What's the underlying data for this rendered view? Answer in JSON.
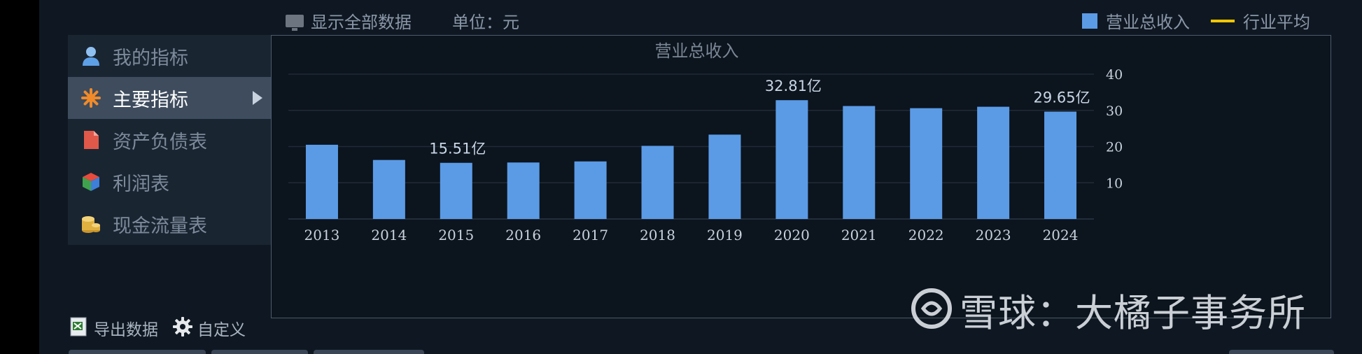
{
  "topbar": {
    "show_all": "显示全部数据",
    "unit": "单位：元",
    "legend": [
      {
        "label": "营业总收入",
        "color": "#5b9be6"
      },
      {
        "label": "行业平均",
        "color": "#f2c500"
      }
    ]
  },
  "sidebar": {
    "items": [
      {
        "label": "我的指标",
        "icon": "user-icon"
      },
      {
        "label": "主要指标",
        "icon": "star-burst-icon",
        "active": true
      },
      {
        "label": "资产负债表",
        "icon": "document-icon"
      },
      {
        "label": "利润表",
        "icon": "cube-icon"
      },
      {
        "label": "现金流量表",
        "icon": "coins-icon"
      }
    ]
  },
  "tools": {
    "export": "导出数据",
    "custom": "自定义"
  },
  "watermark": {
    "text": "雪球：大橘子事务所"
  },
  "colors": {
    "bar": "#5b9be6",
    "grid": "#1f2b38",
    "axis_text": "#c8d3df",
    "title": "#7a8796"
  },
  "chart_data": {
    "type": "bar",
    "title": "营业总收入",
    "categories": [
      "2013",
      "2014",
      "2015",
      "2016",
      "2017",
      "2018",
      "2019",
      "2020",
      "2021",
      "2022",
      "2023",
      "2024"
    ],
    "series": [
      {
        "name": "营业总收入",
        "values": [
          20.5,
          16.3,
          15.51,
          15.6,
          15.9,
          20.2,
          23.3,
          32.81,
          31.2,
          30.6,
          31.0,
          29.65
        ]
      }
    ],
    "data_labels": {
      "2015": "15.51亿",
      "2020": "32.81亿",
      "2024": "29.65亿"
    },
    "yticks": [
      10,
      20,
      30,
      40
    ],
    "ylim": [
      0,
      40
    ],
    "grid": true,
    "y_axis_side": "right"
  }
}
